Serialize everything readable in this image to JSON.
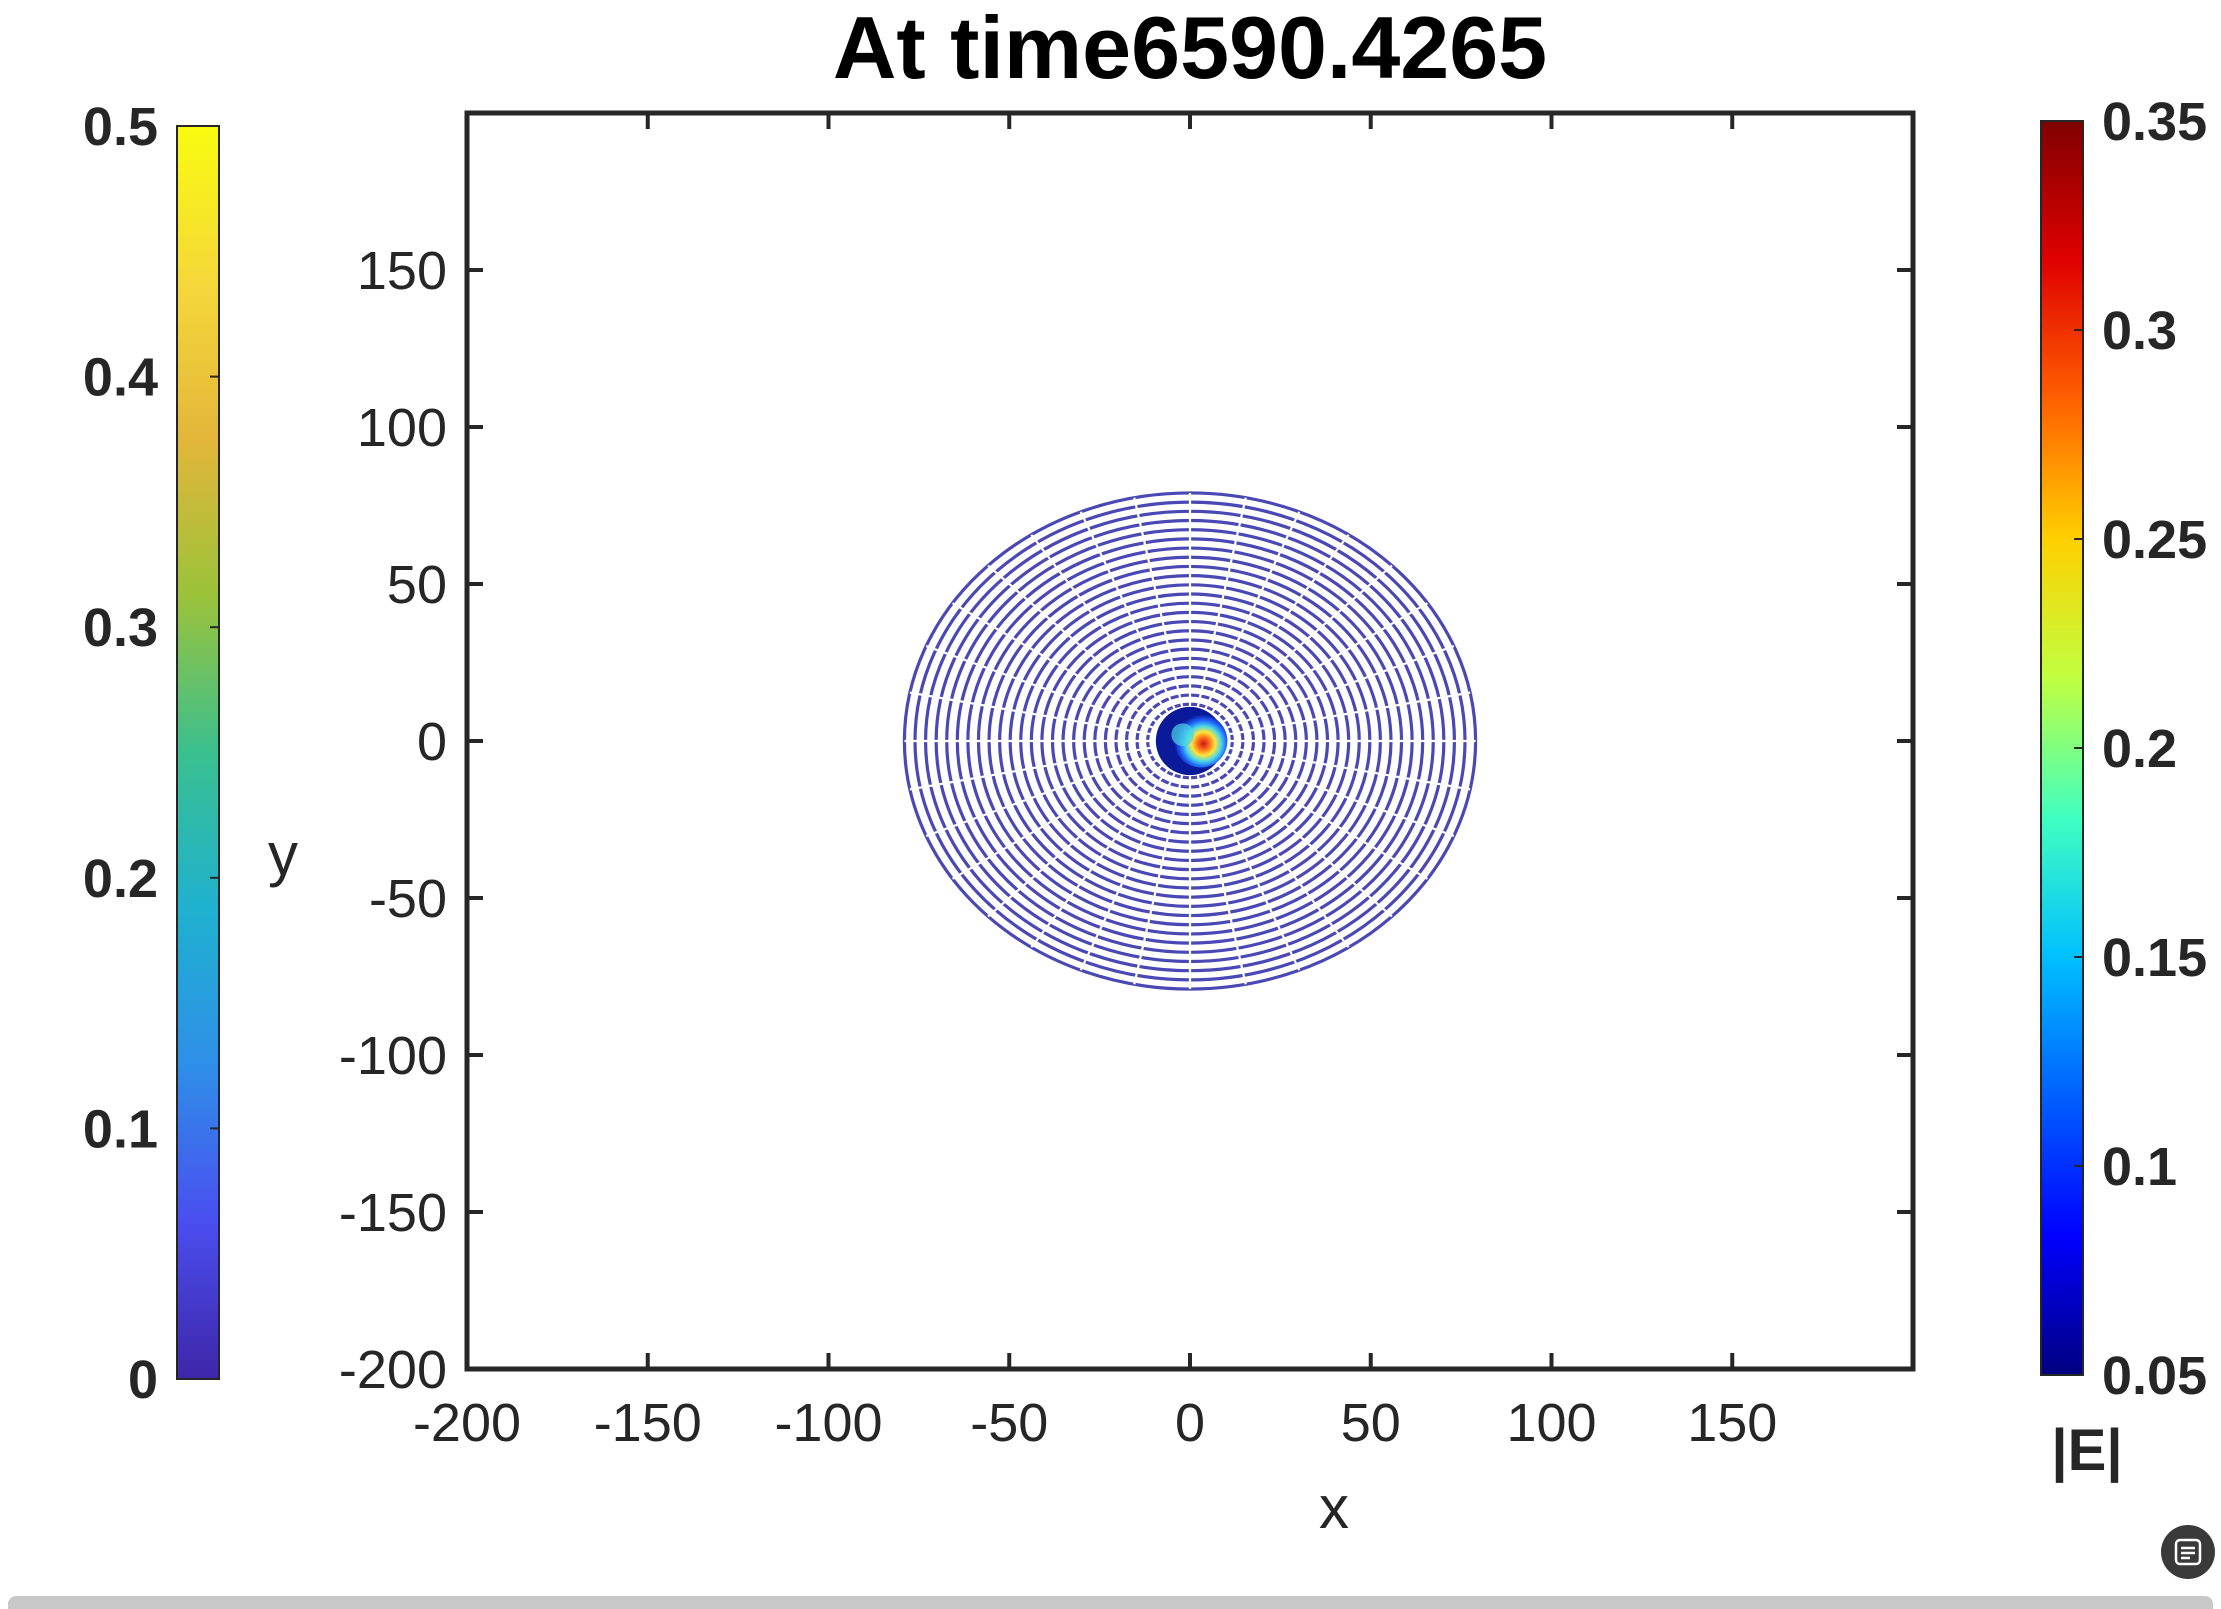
{
  "chart_data": {
    "type": "scatter",
    "title": "At time6590.4265",
    "xlabel": "x",
    "ylabel": "y",
    "xlim": [
      -200,
      200
    ],
    "ylim": [
      -200,
      200
    ],
    "xticks": [
      -200,
      -150,
      -100,
      -50,
      0,
      50,
      100,
      150
    ],
    "yticks": [
      -200,
      -150,
      -100,
      -50,
      0,
      50,
      100,
      150
    ],
    "grid": false,
    "disk": {
      "center": [
        0,
        0
      ],
      "outer_radius": 79,
      "color": "#4a48b4",
      "ring_count": 27,
      "spoke_count": 16
    },
    "hotspot": {
      "center": [
        3,
        0
      ],
      "radius": 7,
      "colormap": [
        "#0a1a9a",
        "#1e63ff",
        "#4ad8e6",
        "#ffe43a",
        "#ff6a1a",
        "#c81414"
      ]
    },
    "colorbars": [
      {
        "position": "left",
        "label": "",
        "min": 0,
        "max": 0.5,
        "ticks": [
          "0",
          "0.1",
          "0.2",
          "0.3",
          "0.4",
          "0.5"
        ],
        "colormap": "parula",
        "stops": [
          "#3e26a8",
          "#4a4eef",
          "#2e8fe8",
          "#1fb1cf",
          "#3ac08f",
          "#9bc23a",
          "#e3b63a",
          "#f5d83a",
          "#f9fb0e"
        ]
      },
      {
        "position": "right",
        "label": "|E|",
        "min": 0.05,
        "max": 0.35,
        "ticks": [
          "0.05",
          "0.1",
          "0.15",
          "0.2",
          "0.25",
          "0.3",
          "0.35"
        ],
        "colormap": "jet",
        "stops": [
          "#000080",
          "#0000ff",
          "#0060ff",
          "#00c0ff",
          "#40ffc0",
          "#c0ff40",
          "#ffd000",
          "#ff6000",
          "#e00000",
          "#800000"
        ]
      }
    ]
  }
}
